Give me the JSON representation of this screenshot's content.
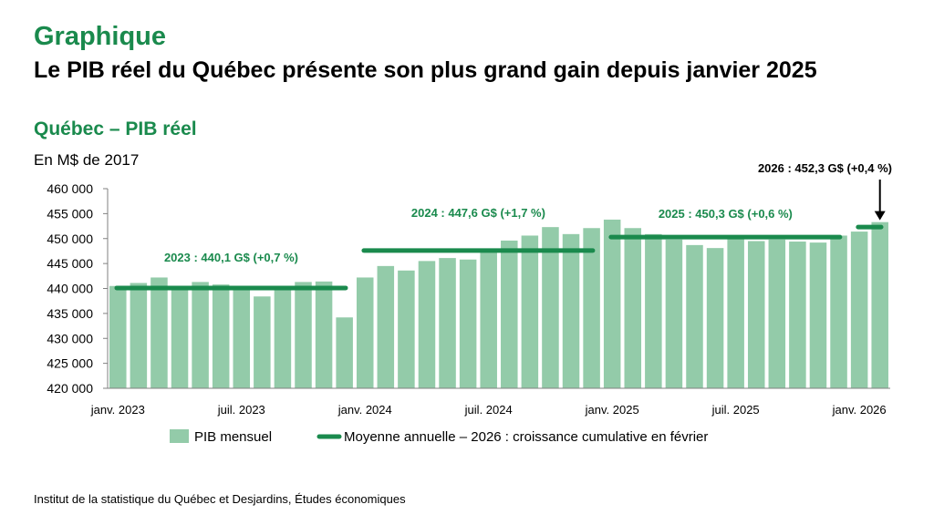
{
  "header": {
    "kicker": "Graphique",
    "headline": "Le PIB réel du Québec présente son plus grand gain depuis janvier 2025"
  },
  "footer": {
    "source": "Institut de la statistique du Québec et Desjardins, Études économiques"
  },
  "colors": {
    "bar": "#93cba9",
    "line": "#1a8a4d",
    "accent_text": "#1a8a4d"
  },
  "chart_data": {
    "type": "bar",
    "title": "Québec – PIB réel",
    "ylabel": "En M$ de 2017",
    "xlabel": "",
    "ylim": [
      420000,
      460000
    ],
    "yticks": [
      420000,
      425000,
      430000,
      435000,
      440000,
      445000,
      450000,
      455000,
      460000
    ],
    "ytick_labels": [
      "420 000",
      "425 000",
      "430 000",
      "435 000",
      "440 000",
      "445 000",
      "450 000",
      "455 000",
      "460 000"
    ],
    "xtick_labels": [
      {
        "index": 0,
        "label": "janv. 2023"
      },
      {
        "index": 6,
        "label": "juil. 2023"
      },
      {
        "index": 12,
        "label": "janv. 2024"
      },
      {
        "index": 18,
        "label": "juil. 2024"
      },
      {
        "index": 24,
        "label": "janv. 2025"
      },
      {
        "index": 30,
        "label": "juil. 2025"
      },
      {
        "index": 36,
        "label": "janv. 2026"
      }
    ],
    "categories": [
      "2023-01",
      "2023-02",
      "2023-03",
      "2023-04",
      "2023-05",
      "2023-06",
      "2023-07",
      "2023-08",
      "2023-09",
      "2023-10",
      "2023-11",
      "2023-12",
      "2024-01",
      "2024-02",
      "2024-03",
      "2024-04",
      "2024-05",
      "2024-06",
      "2024-07",
      "2024-08",
      "2024-09",
      "2024-10",
      "2024-11",
      "2024-12",
      "2025-01",
      "2025-02",
      "2025-03",
      "2025-04",
      "2025-05",
      "2025-06",
      "2025-07",
      "2025-08",
      "2025-09",
      "2025-10",
      "2025-11",
      "2025-12",
      "2026-01",
      "2026-02"
    ],
    "series": [
      {
        "name": "PIB mensuel",
        "kind": "bar",
        "values": [
          440500,
          441100,
          442200,
          440500,
          441300,
          440800,
          440000,
          438400,
          440500,
          441300,
          441400,
          434200,
          442200,
          444500,
          443600,
          445500,
          446100,
          445800,
          447300,
          449600,
          450600,
          452300,
          450900,
          452100,
          453800,
          452100,
          450900,
          449800,
          448700,
          448100,
          450400,
          449500,
          449800,
          449400,
          449200,
          450600,
          451400,
          453300
        ]
      },
      {
        "name": "Moyenne annuelle – 2026 : croissance cumulative en février",
        "kind": "line",
        "segments": [
          {
            "from": 0,
            "to": 11,
            "value": 440100,
            "label": "2023 : 440,1 G$ (+0,7 %)"
          },
          {
            "from": 12,
            "to": 23,
            "value": 447600,
            "label": "2024 : 447,6 G$ (+1,7 %)"
          },
          {
            "from": 24,
            "to": 35,
            "value": 450300,
            "label": "2025 : 450,3 G$ (+0,6 %)"
          },
          {
            "from": 36,
            "to": 37,
            "value": 452300,
            "label": "2026 : 452,3 G$ (+0,4 %)"
          }
        ]
      }
    ],
    "grid": false,
    "legend_position": "bottom"
  }
}
